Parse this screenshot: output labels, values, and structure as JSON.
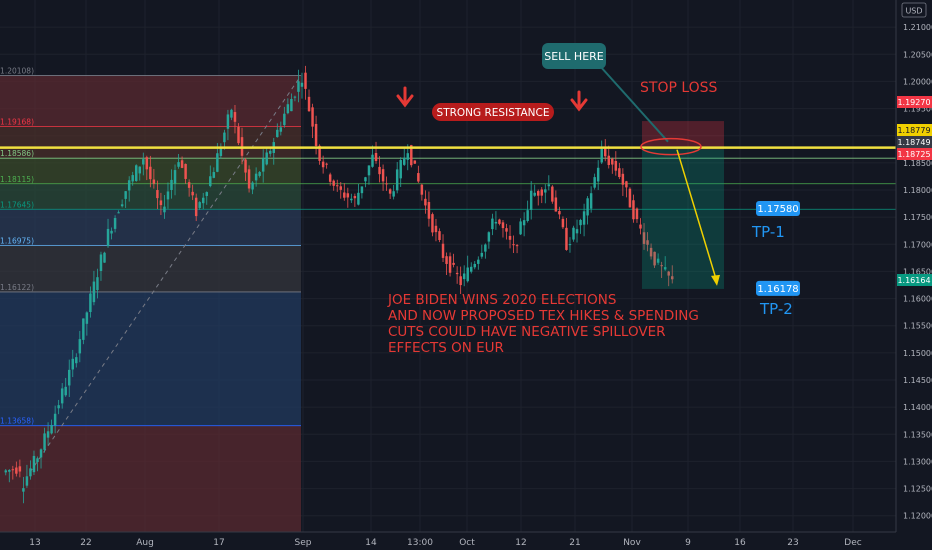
{
  "chart_data": {
    "type": "candlestick",
    "symbol_currency": "USD",
    "ylim": [
      1.117,
      1.215
    ],
    "y_ticks": [
      "1.21000",
      "1.20500",
      "1.20000",
      "1.19500",
      "1.19000",
      "1.18500",
      "1.18000",
      "1.17500",
      "1.17000",
      "1.16500",
      "1.16000",
      "1.15500",
      "1.15000",
      "1.14500",
      "1.14000",
      "1.13500",
      "1.13000",
      "1.12500",
      "1.12000"
    ],
    "x_ticks": [
      "13",
      "22",
      "Aug",
      "17",
      "Sep",
      "14",
      "13:00",
      "Oct",
      "12",
      "21",
      "Nov",
      "9",
      "16",
      "23",
      "Dec"
    ],
    "price_badges": [
      {
        "text": "1.19270",
        "value": 1.1927,
        "color": "#f23645"
      },
      {
        "text": "1.18779",
        "value": 1.18779,
        "color": "#f0d000"
      },
      {
        "text": "1.18749",
        "value": 1.18749,
        "color": "#363a45"
      },
      {
        "text": "1.18725",
        "value": 1.18725,
        "color": "#f23645"
      },
      {
        "text": "1.16164",
        "value": 1.16164,
        "color": "#089981"
      }
    ],
    "fib_levels": [
      {
        "label": "0(1.20108)",
        "value": 1.20108
      },
      {
        "label": "0.236(1.19168)",
        "value": 1.19168
      },
      {
        "label": "0.382(1.18586)",
        "value": 1.18586
      },
      {
        "label": "0.5(1.18115)",
        "value": 1.18115
      },
      {
        "label": "0.618(1.17645)",
        "value": 1.17645
      },
      {
        "label": "0.786(1.16975)",
        "value": 1.16975
      },
      {
        "label": "1(1.16122)",
        "value": 1.16122
      },
      {
        "label": "1.618(1.13658)",
        "value": 1.13658
      }
    ],
    "candles_keypoints": [
      [
        1.128,
        1.129
      ],
      [
        1.125,
        1.131
      ],
      [
        1.131,
        1.139
      ],
      [
        1.139,
        1.148
      ],
      [
        1.148,
        1.16
      ],
      [
        1.16,
        1.172
      ],
      [
        1.172,
        1.18
      ],
      [
        1.18,
        1.186
      ],
      [
        1.186,
        1.176
      ],
      [
        1.176,
        1.186
      ],
      [
        1.186,
        1.176
      ],
      [
        1.176,
        1.184
      ],
      [
        1.184,
        1.195
      ],
      [
        1.195,
        1.18
      ],
      [
        1.18,
        1.186
      ],
      [
        1.186,
        1.194
      ],
      [
        1.194,
        1.201
      ],
      [
        1.201,
        1.186
      ],
      [
        1.186,
        1.18
      ],
      [
        1.18,
        1.178
      ],
      [
        1.178,
        1.186
      ],
      [
        1.186,
        1.179
      ],
      [
        1.179,
        1.188
      ],
      [
        1.188,
        1.177
      ],
      [
        1.177,
        1.168
      ],
      [
        1.168,
        1.163
      ],
      [
        1.163,
        1.168
      ],
      [
        1.168,
        1.175
      ],
      [
        1.175,
        1.169
      ],
      [
        1.169,
        1.179
      ],
      [
        1.179,
        1.181
      ],
      [
        1.181,
        1.17
      ],
      [
        1.17,
        1.175
      ],
      [
        1.175,
        1.187
      ],
      [
        1.187,
        1.183
      ],
      [
        1.183,
        1.174
      ],
      [
        1.174,
        1.167
      ],
      [
        1.167,
        1.163
      ],
      [
        1.163,
        1.168
      ],
      [
        1.168,
        1.177
      ],
      [
        1.177,
        1.186
      ]
    ],
    "resistance_level": 1.1878,
    "stop_loss_level": 1.1927,
    "entry_level": 1.1875,
    "tp1": {
      "text": "1.17580",
      "label": "TP-1",
      "value": 1.1758
    },
    "tp2": {
      "text": "1.16178",
      "label": "TP-2",
      "value": 1.16178
    },
    "annotations": {
      "sell_here": "SELL HERE",
      "stop_loss": "STOP LOSS",
      "strong_resistance": "STRONG RESISTANCE",
      "news_lines": [
        "JOE BIDEN WINS 2020 ELECTIONS",
        "AND NOW PROPOSED TEX HIKES & SPENDING",
        "CUTS COULD HAVE NEGATIVE SPILLOVER",
        "EFFECTS ON EUR"
      ]
    },
    "colors": {
      "up": "#26a69a",
      "down": "#ef5350",
      "resistance": "#f0e040",
      "annotation_red": "#e53935",
      "sell_box": "#1f6b6e",
      "tp_badge": "#2196f3",
      "tp_text": "#2196f3",
      "arrow": "#f0d000"
    }
  }
}
